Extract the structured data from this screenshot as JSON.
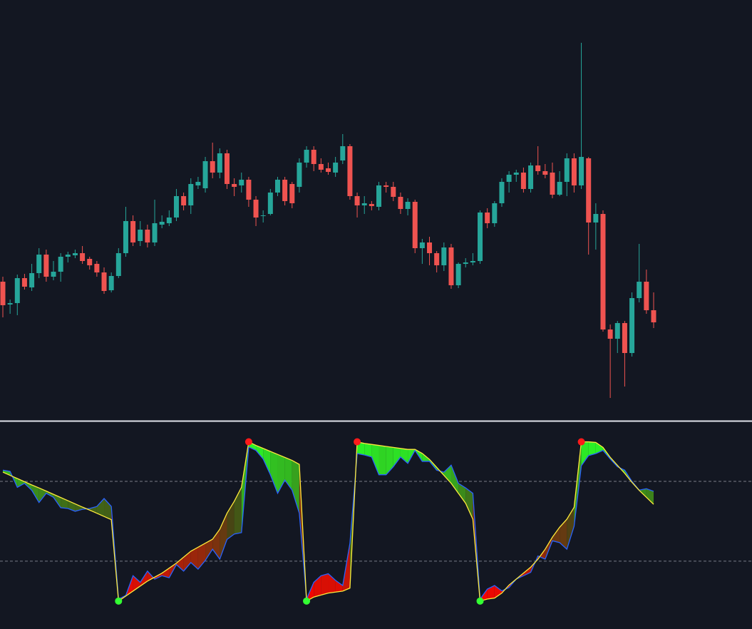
{
  "chart_data": [
    {
      "type": "candlestick",
      "up_color": "#26a69a",
      "down_color": "#ef5350",
      "ylim": [
        10,
        600
      ],
      "open": [
        205,
        173,
        175,
        210,
        197,
        217,
        243,
        212,
        219,
        240,
        242,
        245,
        237,
        230,
        218,
        193,
        213,
        245,
        290,
        262,
        278,
        260,
        285,
        287,
        295,
        325,
        312,
        340,
        336,
        374,
        358,
        385,
        342,
        340,
        348,
        320,
        297,
        300,
        330,
        348,
        342,
        338,
        372,
        390,
        370,
        364,
        358,
        375,
        395,
        325,
        312,
        314,
        310,
        340,
        338,
        324,
        307,
        317,
        252,
        260,
        245,
        228,
        253,
        200,
        230,
        232,
        234,
        302,
        287,
        315,
        345,
        355,
        358,
        335,
        368,
        360,
        358,
        327,
        345,
        378,
        340,
        378,
        288,
        300,
        138,
        125,
        147,
        105,
        182,
        205,
        165
      ],
      "high": [
        212,
        180,
        215,
        216,
        230,
        252,
        250,
        234,
        245,
        247,
        250,
        255,
        240,
        234,
        225,
        218,
        252,
        310,
        298,
        290,
        285,
        320,
        298,
        305,
        335,
        330,
        350,
        352,
        380,
        400,
        392,
        390,
        350,
        358,
        352,
        325,
        305,
        335,
        352,
        352,
        345,
        378,
        395,
        395,
        378,
        372,
        380,
        412,
        398,
        330,
        325,
        318,
        345,
        345,
        345,
        330,
        322,
        320,
        265,
        268,
        248,
        260,
        258,
        232,
        238,
        245,
        305,
        308,
        318,
        350,
        360,
        362,
        365,
        372,
        395,
        370,
        372,
        360,
        385,
        385,
        540,
        380,
        315,
        305,
        145,
        150,
        150,
        190,
        258,
        222,
        190
      ],
      "low": [
        155,
        160,
        158,
        194,
        192,
        210,
        205,
        207,
        205,
        232,
        238,
        230,
        222,
        212,
        188,
        190,
        210,
        240,
        255,
        255,
        253,
        255,
        280,
        283,
        290,
        305,
        300,
        335,
        330,
        350,
        350,
        335,
        325,
        330,
        310,
        283,
        288,
        298,
        325,
        312,
        308,
        330,
        365,
        360,
        358,
        355,
        352,
        370,
        320,
        295,
        300,
        305,
        305,
        330,
        318,
        300,
        298,
        245,
        230,
        228,
        218,
        220,
        195,
        196,
        225,
        228,
        230,
        280,
        282,
        310,
        330,
        345,
        330,
        330,
        355,
        350,
        322,
        325,
        325,
        330,
        335,
        243,
        250,
        135,
        42,
        105,
        58,
        100,
        176,
        160,
        140
      ],
      "close": [
        172,
        175,
        210,
        198,
        217,
        243,
        212,
        219,
        240,
        243,
        245,
        234,
        228,
        218,
        192,
        213,
        245,
        290,
        260,
        278,
        260,
        287,
        289,
        295,
        325,
        312,
        342,
        345,
        374,
        358,
        385,
        342,
        338,
        348,
        320,
        295,
        298,
        330,
        348,
        318,
        315,
        372,
        390,
        370,
        362,
        359,
        372,
        395,
        325,
        312,
        315,
        311,
        340,
        338,
        324,
        307,
        317,
        252,
        260,
        245,
        228,
        253,
        200,
        230,
        232,
        234,
        302,
        287,
        315,
        345,
        355,
        358,
        335,
        368,
        360,
        355,
        327,
        345,
        378,
        340,
        380,
        288,
        300,
        138,
        125,
        147,
        105,
        182,
        205,
        165,
        148
      ]
    },
    {
      "type": "oscillator",
      "ylim": [
        -4,
        100
      ],
      "levels": [
        30,
        70
      ],
      "series": [
        {
          "color": "#2962ff",
          "values": [
            75.6,
            75,
            67,
            69,
            65.5,
            59.4,
            64,
            62,
            56.8,
            56.4,
            55,
            56,
            56.4,
            57.4,
            61.4,
            57.4,
            11,
            12.8,
            22.7,
            19.4,
            25,
            21,
            22.7,
            21.7,
            28.3,
            25,
            29.3,
            26,
            30.4,
            36,
            31,
            40.9,
            43.6,
            44.3,
            87.2,
            85.5,
            81.2,
            73.3,
            64,
            70.6,
            65.6,
            54,
            11,
            19.4,
            22.7,
            23.7,
            20.4,
            17.8,
            39,
            83.9,
            83.2,
            82.2,
            73.3,
            73.3,
            77.3,
            82.2,
            79,
            85.5,
            80,
            80,
            75.6,
            74.6,
            78.1,
            69,
            66.7,
            64,
            11,
            16,
            17.8,
            15.1,
            16.8,
            21,
            22.7,
            24.4,
            32.6,
            31,
            40.2,
            39.3,
            36,
            47.5,
            77.8,
            82.9,
            83.9,
            85.5,
            81.2,
            77.3,
            75.6,
            70,
            65.6,
            66.3,
            65
          ]
        },
        {
          "color": "#ffeb3b",
          "values": [
            74.6,
            73.0,
            71.4,
            69.8,
            68.2,
            66.7,
            65.1,
            63.5,
            61.9,
            60.3,
            58.7,
            57.1,
            55.6,
            54.0,
            52.4,
            50.8,
            10,
            12.5,
            15,
            17.5,
            20,
            22,
            24,
            26.5,
            29,
            32,
            35,
            37,
            39,
            41,
            46,
            54,
            60,
            67,
            89.8,
            88,
            86.5,
            85,
            83.5,
            82,
            80.5,
            78.5,
            10,
            12,
            13,
            14,
            14.5,
            15,
            16.5,
            89.8,
            89,
            88.5,
            88,
            87.5,
            87,
            86.5,
            86,
            86,
            84,
            81,
            77,
            73,
            69,
            64,
            59,
            51,
            10,
            11,
            11.5,
            14,
            18,
            21,
            24,
            27,
            31,
            36,
            42,
            47,
            51,
            57,
            89.8,
            89.8,
            89.5,
            87,
            82,
            78,
            74,
            69.5,
            65.5,
            62,
            58.5
          ]
        }
      ],
      "pivot_highs": [
        34,
        49,
        80
      ],
      "pivot_lows": [
        16,
        42,
        66
      ],
      "pivot_high_color": "#ff1a1a",
      "pivot_low_color": "#33ff33"
    }
  ]
}
